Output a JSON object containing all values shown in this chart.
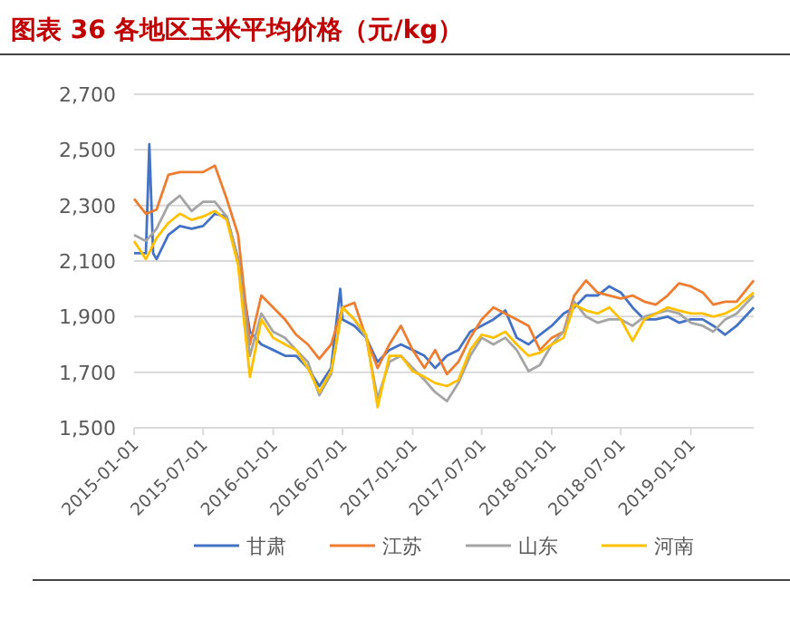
{
  "chart_data": {
    "type": "line",
    "title": "图表 36 各地区玉米平均价格（元/kg）",
    "x": [
      "2015-01",
      "2015-02",
      "2015-03",
      "2015-04",
      "2015-05",
      "2015-06",
      "2015-07",
      "2015-08",
      "2015-09",
      "2015-10",
      "2015-11",
      "2015-12",
      "2016-01",
      "2016-02",
      "2016-03",
      "2016-04",
      "2016-05",
      "2016-06",
      "2016-07",
      "2016-08",
      "2016-09",
      "2016-10",
      "2016-11",
      "2016-12",
      "2017-01",
      "2017-02",
      "2017-03",
      "2017-04",
      "2017-05",
      "2017-06",
      "2017-07",
      "2017-08",
      "2017-09",
      "2017-10",
      "2017-11",
      "2017-12",
      "2018-01",
      "2018-02",
      "2018-03",
      "2018-04",
      "2018-05",
      "2018-06",
      "2018-07",
      "2018-08",
      "2018-09",
      "2018-10",
      "2018-11",
      "2018-12",
      "2019-01",
      "2019-02",
      "2019-03",
      "2019-04",
      "2019-05",
      "2019-06-15"
    ],
    "series": [
      {
        "name": "甘肃",
        "color": "#4472c4",
        "x": [
          "2015-01",
          "2015-02",
          "2015-02-10",
          "2015-02-20",
          "2015-03",
          "2015-04",
          "2015-05",
          "2015-06",
          "2015-07",
          "2015-08",
          "2015-09",
          "2015-10",
          "2015-11",
          "2015-12",
          "2016-01",
          "2016-02",
          "2016-03",
          "2016-04",
          "2016-05",
          "2016-06",
          "2016-06-25",
          "2016-07",
          "2016-08",
          "2016-09",
          "2016-10",
          "2016-11",
          "2016-12",
          "2017-01",
          "2017-02",
          "2017-03",
          "2017-04",
          "2017-05",
          "2017-06",
          "2017-07",
          "2017-08",
          "2017-09",
          "2017-10",
          "2017-11",
          "2017-12",
          "2018-01",
          "2018-02",
          "2018-03",
          "2018-04",
          "2018-05",
          "2018-06",
          "2018-07",
          "2018-08",
          "2018-09",
          "2018-10",
          "2018-11",
          "2018-12",
          "2019-01",
          "2019-02",
          "2019-03",
          "2019-04",
          "2019-05",
          "2019-06-15"
        ],
        "values": [
          2128,
          2128,
          2520,
          2128,
          2107,
          2194,
          2226,
          2216,
          2226,
          2270,
          2260,
          2107,
          1846,
          1800,
          1780,
          1759,
          1759,
          1715,
          1650,
          1715,
          2000,
          1890,
          1867,
          1824,
          1737,
          1780,
          1800,
          1780,
          1759,
          1715,
          1759,
          1780,
          1846,
          1867,
          1890,
          1922,
          1824,
          1800,
          1835,
          1867,
          1911,
          1933,
          1976,
          1976,
          2009,
          1987,
          1933,
          1890,
          1890,
          1900,
          1878,
          1890,
          1890,
          1867,
          1835,
          1867,
          1933
        ]
      },
      {
        "name": "江苏",
        "color": "#ed7d31",
        "values": [
          2324,
          2270,
          2285,
          2410,
          2420,
          2420,
          2420,
          2443,
          2324,
          2194,
          1800,
          1976,
          1933,
          1890,
          1835,
          1800,
          1748,
          1800,
          1933,
          1950,
          1824,
          1715,
          1800,
          1867,
          1780,
          1715,
          1780,
          1693,
          1737,
          1824,
          1890,
          1933,
          1911,
          1890,
          1867,
          1780,
          1824,
          1846,
          1976,
          2030,
          1987,
          1976,
          1965,
          1976,
          1954,
          1943,
          1976,
          2020,
          2009,
          1987,
          1943,
          1954,
          1954,
          2030
        ]
      },
      {
        "name": "山东",
        "color": "#a5a5a5",
        "values": [
          2194,
          2172,
          2216,
          2302,
          2335,
          2280,
          2313,
          2313,
          2260,
          2107,
          1759,
          1911,
          1846,
          1824,
          1780,
          1737,
          1617,
          1693,
          1933,
          1890,
          1824,
          1606,
          1737,
          1759,
          1715,
          1672,
          1628,
          1596,
          1661,
          1759,
          1824,
          1800,
          1824,
          1780,
          1704,
          1726,
          1800,
          1846,
          1954,
          1900,
          1878,
          1890,
          1890,
          1867,
          1900,
          1911,
          1922,
          1911,
          1878,
          1867,
          1846,
          1890,
          1911,
          1976
        ]
      },
      {
        "name": "河南",
        "color": "#ffc000",
        "values": [
          2172,
          2107,
          2183,
          2237,
          2270,
          2248,
          2260,
          2280,
          2248,
          2085,
          1683,
          1890,
          1824,
          1800,
          1780,
          1715,
          1628,
          1704,
          1933,
          1890,
          1835,
          1574,
          1759,
          1759,
          1704,
          1683,
          1661,
          1650,
          1672,
          1780,
          1835,
          1824,
          1846,
          1800,
          1759,
          1770,
          1800,
          1824,
          1943,
          1922,
          1911,
          1933,
          1890,
          1813,
          1890,
          1911,
          1933,
          1922,
          1911,
          1911,
          1900,
          1911,
          1933,
          1987
        ]
      }
    ],
    "xlim": [
      "2015-01-01",
      "2019-06-15"
    ],
    "xticks": [
      "2015-01-01",
      "2015-07-01",
      "2016-01-01",
      "2016-07-01",
      "2017-01-01",
      "2017-07-01",
      "2018-01-01",
      "2018-07-01",
      "2019-01-01"
    ],
    "ylim": [
      1500,
      2700
    ],
    "yticks": [
      {
        "value": 1500,
        "label": "1,500"
      },
      {
        "value": 1700,
        "label": "1,700"
      },
      {
        "value": 1900,
        "label": "1,900"
      },
      {
        "value": 2100,
        "label": "2,100"
      },
      {
        "value": 2300,
        "label": "2,300"
      },
      {
        "value": 2500,
        "label": "2,500"
      },
      {
        "value": 2700,
        "label": "2,700"
      }
    ],
    "grid": "y",
    "legend": "bottom",
    "line_style": "solid"
  }
}
